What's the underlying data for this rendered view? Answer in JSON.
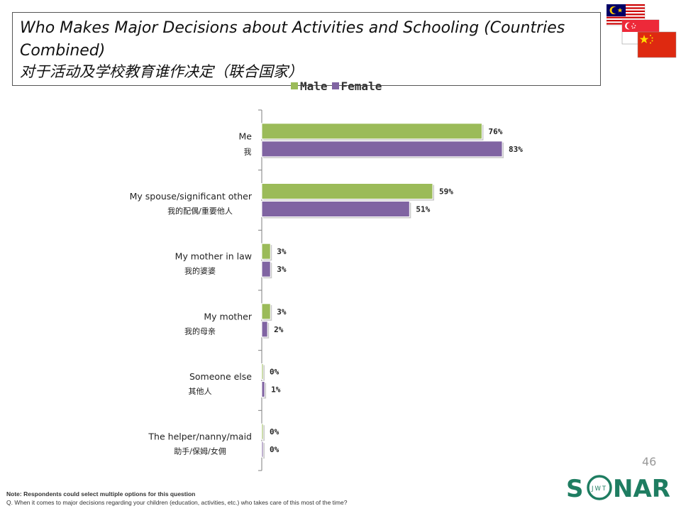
{
  "title": {
    "line1": "Who Makes Major Decisions about Activities and Schooling (Countries Combined)",
    "line2": "对于活动及学校教育谁作决定（联合国家）"
  },
  "legend": {
    "male": "Male",
    "female": "Female"
  },
  "colors": {
    "male": "#9bbb59",
    "female": "#8064a2",
    "axis": "#7f7f7f"
  },
  "chart_data": {
    "type": "bar",
    "orientation": "horizontal",
    "title": "Who Makes Major Decisions about Activities and Schooling (Countries Combined)",
    "xlabel": "",
    "ylabel": "",
    "xlim": [
      0,
      100
    ],
    "categories": [
      {
        "en": "Me",
        "zh": "我"
      },
      {
        "en": "My spouse/significant other",
        "zh": "我的配偶/重要他人"
      },
      {
        "en": "My mother in law",
        "zh": "我的婆婆"
      },
      {
        "en": "My mother",
        "zh": "我的母亲"
      },
      {
        "en": "Someone else",
        "zh": "其他人"
      },
      {
        "en": "The helper/nanny/maid",
        "zh": "助手/保姆/女佣"
      }
    ],
    "series": [
      {
        "name": "Male",
        "values": [
          76,
          59,
          3,
          3,
          0,
          0
        ]
      },
      {
        "name": "Female",
        "values": [
          83,
          51,
          3,
          2,
          1,
          0
        ]
      }
    ],
    "value_suffix": "%"
  },
  "page_number": "46",
  "logo": {
    "text_s": "S",
    "text_nar": "NAR",
    "text_jwt": "JWT"
  },
  "footnote": {
    "note": "Note: Respondents could select multiple options for this question",
    "question": "Q. When it comes to major decisions regarding your children (education, activities, etc.) who takes care of this most of the time?"
  }
}
